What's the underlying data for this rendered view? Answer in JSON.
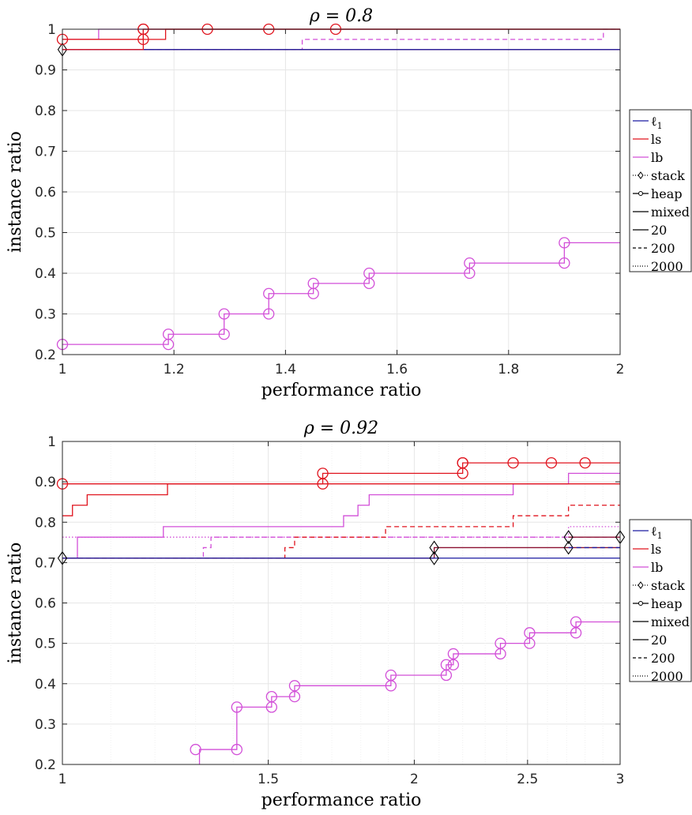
{
  "chart_data": [
    {
      "type": "line",
      "title": "ρ = 0.8",
      "xlabel": "performance ratio",
      "ylabel": "instance ratio",
      "xlim": [
        1,
        2
      ],
      "ylim": [
        0.2,
        1.0
      ],
      "xscale": "linear",
      "xticks": [
        "1",
        "1.2",
        "1.4",
        "1.6",
        "1.8",
        "2"
      ],
      "yticks": [
        "0.2",
        "0.3",
        "0.4",
        "0.5",
        "0.6",
        "0.7",
        "0.8",
        "0.9",
        "1"
      ],
      "grid": true,
      "legend_position": "outside-right",
      "colors": {
        "l1": "#1a1aa0",
        "ls": "#e0141e",
        "lb": "#d24fd8",
        "mixed": "#8a1030",
        "black": "#000000"
      },
      "series": [
        {
          "name": "lb",
          "color": "#d24fd8",
          "dash": "solid",
          "marker": "circle",
          "x": [
            1,
            1.19,
            1.19,
            1.29,
            1.29,
            1.37,
            1.37,
            1.45,
            1.45,
            1.55,
            1.55,
            1.73,
            1.73,
            1.9,
            1.9,
            2
          ],
          "y": [
            0.225,
            0.225,
            0.25,
            0.25,
            0.3,
            0.3,
            0.35,
            0.35,
            0.375,
            0.375,
            0.4,
            0.4,
            0.425,
            0.425,
            0.475,
            0.475
          ],
          "markers": [
            [
              1,
              0.225
            ],
            [
              1.19,
              0.225
            ],
            [
              1.19,
              0.25
            ],
            [
              1.29,
              0.25
            ],
            [
              1.29,
              0.3
            ],
            [
              1.37,
              0.3
            ],
            [
              1.37,
              0.35
            ],
            [
              1.45,
              0.35
            ],
            [
              1.45,
              0.375
            ],
            [
              1.55,
              0.375
            ],
            [
              1.55,
              0.4
            ],
            [
              1.73,
              0.4
            ],
            [
              1.73,
              0.425
            ],
            [
              1.9,
              0.425
            ],
            [
              1.9,
              0.475
            ]
          ]
        },
        {
          "color": "#d24fd8",
          "dash": "solid",
          "marker": "none",
          "x": [
            1,
            1.065,
            1.065,
            2
          ],
          "y": [
            0.975,
            0.975,
            1.0,
            1.0
          ],
          "markers": []
        },
        {
          "color": "#d24fd8",
          "dash": "dashed",
          "marker": "none",
          "x": [
            1,
            1.43,
            1.43,
            1.97,
            1.97,
            2
          ],
          "y": [
            0.95,
            0.95,
            0.975,
            0.975,
            1.0,
            1.0
          ],
          "markers": []
        },
        {
          "color": "#8a1030",
          "dash": "solid",
          "marker": "none",
          "x": [
            1,
            2
          ],
          "y": [
            0.95,
            0.95
          ],
          "markers": []
        },
        {
          "color": "#1a1aa0",
          "dash": "solid",
          "marker": "diamond",
          "x": [
            1,
            2
          ],
          "y": [
            0.95,
            0.95
          ],
          "markers": [
            [
              1,
              0.95
            ]
          ]
        },
        {
          "name": "ls",
          "color": "#e0141e",
          "dash": "solid",
          "marker": "circle",
          "x": [
            1,
            1.145,
            1.145,
            2
          ],
          "y": [
            0.975,
            0.975,
            1.0,
            1.0
          ],
          "markers": [
            [
              1,
              0.975
            ],
            [
              1.145,
              0.975
            ],
            [
              1.145,
              1.0
            ],
            [
              1.145,
              1.0
            ],
            [
              1.26,
              1.0
            ],
            [
              1.37,
              1.0
            ],
            [
              1.49,
              1.0
            ]
          ]
        },
        {
          "color": "#e0141e",
          "dash": "solid",
          "marker": "none",
          "x": [
            1,
            1.185,
            1.185,
            2
          ],
          "y": [
            0.975,
            0.975,
            1.0,
            1.0
          ],
          "markers": []
        },
        {
          "color": "#e0141e",
          "dash": "solid",
          "marker": "none",
          "x": [
            1,
            1.145,
            1.145,
            2
          ],
          "y": [
            0.95,
            0.95,
            1.0,
            1.0
          ],
          "markers": []
        }
      ]
    },
    {
      "type": "line",
      "title": "ρ = 0.92",
      "xlabel": "performance ratio",
      "ylabel": "instance ratio",
      "xlim": [
        1,
        3
      ],
      "ylim": [
        0.2,
        1.0
      ],
      "xscale": "log",
      "xticks": [
        "1",
        "1.5",
        "2",
        "2.5",
        "3"
      ],
      "yticks": [
        "0.2",
        "0.3",
        "0.4",
        "0.5",
        "0.6",
        "0.7",
        "0.8",
        "0.9",
        "1"
      ],
      "grid": true,
      "legend_position": "outside-right",
      "colors": {
        "l1": "#1a1aa0",
        "ls": "#e0141e",
        "lb": "#d24fd8",
        "mixed": "#8a1030",
        "black": "#000000"
      },
      "series": [
        {
          "name": "lb",
          "color": "#d24fd8",
          "dash": "solid",
          "marker": "circle",
          "x": [
            1.31,
            1.31,
            1.41,
            1.41,
            1.51,
            1.51,
            1.58,
            1.58,
            1.91,
            1.91,
            2.13,
            2.13,
            2.16,
            2.16,
            2.37,
            2.37,
            2.51,
            2.51,
            2.75,
            2.75,
            3
          ],
          "y": [
            0.2,
            0.237,
            0.237,
            0.342,
            0.342,
            0.368,
            0.368,
            0.395,
            0.395,
            0.421,
            0.421,
            0.447,
            0.447,
            0.474,
            0.474,
            0.5,
            0.5,
            0.526,
            0.526,
            0.553,
            0.553
          ],
          "markers": [
            [
              1.3,
              0.237
            ],
            [
              1.41,
              0.237
            ],
            [
              1.41,
              0.342
            ],
            [
              1.51,
              0.342
            ],
            [
              1.51,
              0.368
            ],
            [
              1.58,
              0.368
            ],
            [
              1.58,
              0.395
            ],
            [
              1.91,
              0.395
            ],
            [
              1.91,
              0.421
            ],
            [
              2.13,
              0.421
            ],
            [
              2.13,
              0.447
            ],
            [
              2.16,
              0.447
            ],
            [
              2.16,
              0.474
            ],
            [
              2.37,
              0.474
            ],
            [
              2.37,
              0.5
            ],
            [
              2.51,
              0.5
            ],
            [
              2.51,
              0.526
            ],
            [
              2.75,
              0.526
            ],
            [
              2.75,
              0.553
            ]
          ]
        },
        {
          "color": "#d24fd8",
          "dash": "solid",
          "marker": "none",
          "x": [
            1,
            1.03,
            1.03,
            1.22,
            1.22,
            1.74,
            1.74,
            1.79,
            1.79,
            1.83,
            1.83,
            2.43,
            2.43,
            2.71,
            2.71,
            3
          ],
          "y": [
            0.711,
            0.711,
            0.763,
            0.763,
            0.789,
            0.789,
            0.816,
            0.816,
            0.842,
            0.842,
            0.868,
            0.868,
            0.895,
            0.895,
            0.921,
            0.921
          ],
          "markers": []
        },
        {
          "color": "#d24fd8",
          "dash": "dashed",
          "marker": "none",
          "x": [
            1,
            1.32,
            1.32,
            1.34,
            1.34,
            3
          ],
          "y": [
            0.711,
            0.711,
            0.737,
            0.737,
            0.763,
            0.763
          ],
          "markers": []
        },
        {
          "color": "#d24fd8",
          "dash": "dotted",
          "marker": "none",
          "x": [
            1,
            2.71,
            2.71,
            3
          ],
          "y": [
            0.763,
            0.763,
            0.789,
            0.789
          ],
          "markers": []
        },
        {
          "color": "#e0141e",
          "dash": "dashed",
          "marker": "none",
          "x": [
            1,
            1.55,
            1.55,
            1.58,
            1.58,
            1.89,
            1.89,
            2.43,
            2.43,
            2.71,
            2.71,
            3
          ],
          "y": [
            0.711,
            0.711,
            0.737,
            0.737,
            0.763,
            0.763,
            0.789,
            0.789,
            0.816,
            0.816,
            0.842,
            0.842
          ],
          "markers": []
        },
        {
          "color": "#8a1030",
          "dash": "solid",
          "marker": "none",
          "x": [
            1,
            2.08,
            2.08,
            3
          ],
          "y": [
            0.711,
            0.711,
            0.737,
            0.737
          ],
          "markers": []
        },
        {
          "color": "#8a1030",
          "dash": "solid",
          "marker": "diamond",
          "x": [
            2.71,
            3
          ],
          "y": [
            0.763,
            0.763
          ],
          "markers": [
            [
              2.71,
              0.763
            ],
            [
              3,
              0.763
            ]
          ]
        },
        {
          "color": "#1a1aa0",
          "dash": "solid",
          "marker": "diamond",
          "x": [
            1,
            2.08,
            2.08,
            3
          ],
          "y": [
            0.711,
            0.711,
            0.711,
            0.711
          ],
          "markers": [
            [
              1,
              0.711
            ],
            [
              2.08,
              0.711
            ],
            [
              2.08,
              0.737
            ],
            [
              2.71,
              0.737
            ]
          ]
        },
        {
          "color": "#1a1aa0",
          "dash": "dashed",
          "marker": "none",
          "x": [
            2.71,
            3
          ],
          "y": [
            0.737,
            0.737
          ],
          "markers": []
        },
        {
          "color": "#e0141e",
          "dash": "solid",
          "marker": "none",
          "x": [
            1,
            1.02,
            1.02,
            1.05,
            1.05,
            1.23,
            1.23,
            3
          ],
          "y": [
            0.816,
            0.816,
            0.842,
            0.842,
            0.868,
            0.868,
            0.895,
            0.895
          ],
          "markers": []
        },
        {
          "name": "ls",
          "color": "#e0141e",
          "dash": "solid",
          "marker": "circle",
          "x": [
            1,
            1.67,
            1.67,
            2.2,
            2.2,
            3
          ],
          "y": [
            0.895,
            0.895,
            0.921,
            0.921,
            0.947,
            0.947
          ],
          "markers": [
            [
              1,
              0.895
            ],
            [
              1.67,
              0.895
            ],
            [
              1.67,
              0.921
            ],
            [
              2.2,
              0.921
            ],
            [
              2.2,
              0.947
            ],
            [
              2.2,
              0.947
            ],
            [
              2.43,
              0.947
            ],
            [
              2.62,
              0.947
            ],
            [
              2.8,
              0.947
            ]
          ]
        }
      ]
    }
  ],
  "legend": {
    "entries": [
      {
        "label": "ℓ",
        "sub": "1",
        "color": "#1a1aa0",
        "dash": "solid",
        "marker": "none"
      },
      {
        "label": "ls",
        "sub": "",
        "color": "#e0141e",
        "dash": "solid",
        "marker": "none"
      },
      {
        "label": "lb",
        "sub": "",
        "color": "#d24fd8",
        "dash": "solid",
        "marker": "none"
      },
      {
        "label": "stack",
        "sub": "",
        "color": "#000000",
        "dash": "dotted",
        "marker": "diamond"
      },
      {
        "label": "heap",
        "sub": "",
        "color": "#000000",
        "dash": "solid",
        "marker": "circle"
      },
      {
        "label": "mixed",
        "sub": "",
        "color": "#000000",
        "dash": "solid",
        "marker": "none"
      },
      {
        "label": "20",
        "sub": "",
        "color": "#000000",
        "dash": "solid",
        "marker": "none"
      },
      {
        "label": "200",
        "sub": "",
        "color": "#000000",
        "dash": "dashed",
        "marker": "none"
      },
      {
        "label": "2000",
        "sub": "",
        "color": "#000000",
        "dash": "dotted",
        "marker": "none"
      }
    ]
  }
}
